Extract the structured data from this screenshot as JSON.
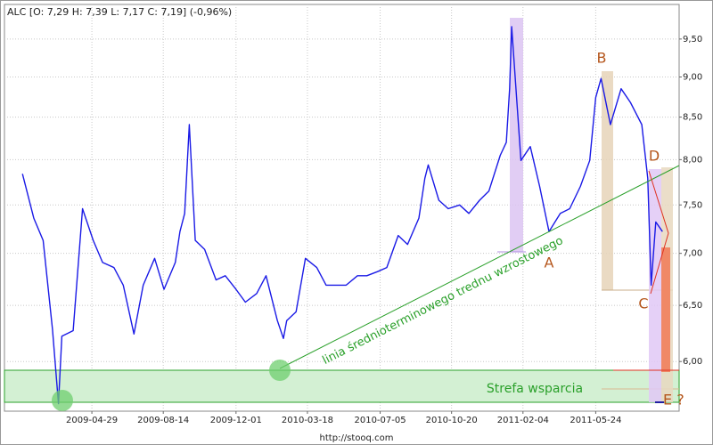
{
  "chart_data": {
    "type": "line",
    "title": "ALC [O: 7,29  H: 7,39  L: 7,17  C: 7,19] (-0,96%)",
    "source": "http://stooq.com",
    "annotations": [
      "A",
      "B",
      "C",
      "D",
      "E ?",
      "linia średnioterminowego trednu wzrostowego",
      "Strefa wsparcia"
    ],
    "log_scale": true,
    "grid": true,
    "color": "#1a1ae6",
    "xlim": [
      "2008-12-19",
      "2011-09-26"
    ],
    "xticks": [
      "2009-04-29",
      "2009-08-14",
      "2009-12-01",
      "2010-03-18",
      "2010-07-05",
      "2010-10-20",
      "2011-02-04",
      "2011-05-24"
    ],
    "ylim": [
      5.59,
      9.98
    ],
    "yticks": [
      {
        "value": 6.0,
        "label": "6,00"
      },
      {
        "value": 6.5,
        "label": "6,50"
      },
      {
        "value": 7.0,
        "label": "7,00"
      },
      {
        "value": 7.5,
        "label": "7,50"
      },
      {
        "value": 8.0,
        "label": "8,00"
      },
      {
        "value": 8.5,
        "label": "8,50"
      },
      {
        "value": 9.0,
        "label": "9,00"
      },
      {
        "value": 9.5,
        "label": "9,50"
      }
    ],
    "x": [
      "2009-01-15",
      "2009-02-01",
      "2009-02-15",
      "2009-03-01",
      "2009-03-10",
      "2009-03-15",
      "2009-04-01",
      "2009-04-15",
      "2009-05-01",
      "2009-05-15",
      "2009-06-01",
      "2009-06-15",
      "2009-07-01",
      "2009-07-15",
      "2009-08-01",
      "2009-08-15",
      "2009-09-01",
      "2009-09-08",
      "2009-09-15",
      "2009-09-22",
      "2009-10-01",
      "2009-10-15",
      "2009-11-01",
      "2009-11-15",
      "2009-12-01",
      "2009-12-15",
      "2010-01-01",
      "2010-01-15",
      "2010-02-01",
      "2010-02-10",
      "2010-02-15",
      "2010-03-01",
      "2010-03-15",
      "2010-04-01",
      "2010-04-15",
      "2010-05-01",
      "2010-05-15",
      "2010-06-01",
      "2010-06-15",
      "2010-07-01",
      "2010-07-15",
      "2010-08-01",
      "2010-08-15",
      "2010-09-01",
      "2010-09-10",
      "2010-09-15",
      "2010-10-01",
      "2010-10-15",
      "2010-11-01",
      "2010-11-15",
      "2010-12-01",
      "2010-12-15",
      "2011-01-01",
      "2011-01-10",
      "2011-01-15",
      "2011-01-18",
      "2011-02-01",
      "2011-02-15",
      "2011-03-01",
      "2011-03-15",
      "2011-04-01",
      "2011-04-15",
      "2011-05-01",
      "2011-05-15",
      "2011-05-24",
      "2011-06-01",
      "2011-06-15",
      "2011-07-01",
      "2011-07-15",
      "2011-08-01",
      "2011-08-10",
      "2011-08-15",
      "2011-08-22",
      "2011-09-01"
    ],
    "values": [
      7.84,
      7.36,
      7.13,
      6.28,
      5.65,
      6.22,
      6.27,
      7.46,
      7.13,
      6.91,
      6.86,
      6.69,
      6.24,
      6.69,
      6.95,
      6.65,
      6.91,
      7.22,
      7.41,
      8.41,
      7.13,
      7.04,
      6.74,
      6.78,
      6.65,
      6.53,
      6.61,
      6.78,
      6.36,
      6.2,
      6.36,
      6.44,
      6.95,
      6.86,
      6.69,
      6.69,
      6.69,
      6.78,
      6.78,
      6.82,
      6.86,
      7.18,
      7.09,
      7.36,
      7.79,
      7.94,
      7.55,
      7.46,
      7.5,
      7.41,
      7.55,
      7.65,
      8.05,
      8.2,
      8.85,
      9.67,
      7.99,
      8.15,
      7.7,
      7.22,
      7.41,
      7.46,
      7.7,
      7.99,
      8.74,
      8.98,
      8.41,
      8.85,
      8.68,
      8.41,
      7.79,
      6.69,
      7.32,
      7.22
    ]
  }
}
